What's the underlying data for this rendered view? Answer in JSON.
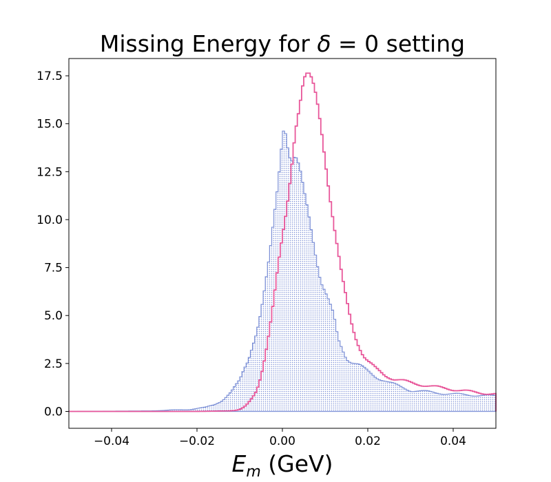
{
  "chart_data": {
    "type": "histogram",
    "title_parts": [
      "Missing Energy for ",
      "δ",
      " = 0 setting"
    ],
    "xlabel_parts": [
      "E",
      "m",
      " (GeV)"
    ],
    "xlim": [
      -0.05,
      0.05
    ],
    "ylim": [
      -0.88,
      18.4
    ],
    "xticks": [
      -0.04,
      -0.02,
      0.0,
      0.02,
      0.04
    ],
    "xtick_labels": [
      "−0.04",
      "−0.02",
      "0.00",
      "0.02",
      "0.04"
    ],
    "yticks": [
      0.0,
      2.5,
      5.0,
      7.5,
      10.0,
      12.5,
      15.0,
      17.5
    ],
    "ytick_labels": [
      "0.0",
      "2.5",
      "5.0",
      "7.5",
      "10.0",
      "12.5",
      "15.0",
      "17.5"
    ],
    "grid": false,
    "bin_edges_range": [
      -0.05,
      0.05
    ],
    "bin_width": 0.0005,
    "series": [
      {
        "style": "filled-dotted",
        "color": "#7b8fd6",
        "control_points": [
          [
            -0.05,
            0.0
          ],
          [
            -0.03,
            0.03
          ],
          [
            -0.022,
            0.1
          ],
          [
            -0.018,
            0.2
          ],
          [
            -0.016,
            0.35
          ],
          [
            -0.014,
            0.6
          ],
          [
            -0.012,
            1.0
          ],
          [
            -0.01,
            1.6
          ],
          [
            -0.009,
            2.2
          ],
          [
            -0.008,
            2.7
          ],
          [
            -0.007,
            3.5
          ],
          [
            -0.006,
            4.2
          ],
          [
            -0.005,
            5.2
          ],
          [
            -0.004,
            6.5
          ],
          [
            -0.003,
            8.0
          ],
          [
            -0.002,
            10.0
          ],
          [
            -0.001,
            12.0
          ],
          [
            0.0,
            14.5
          ],
          [
            0.0005,
            15.2
          ],
          [
            0.001,
            14.2
          ],
          [
            0.002,
            13.0
          ],
          [
            0.003,
            13.2
          ],
          [
            0.004,
            12.6
          ],
          [
            0.005,
            11.5
          ],
          [
            0.006,
            10.5
          ],
          [
            0.007,
            9.3
          ],
          [
            0.008,
            8.0
          ],
          [
            0.009,
            6.8
          ],
          [
            0.01,
            6.2
          ],
          [
            0.011,
            5.6
          ],
          [
            0.012,
            5.0
          ],
          [
            0.013,
            3.8
          ],
          [
            0.014,
            3.3
          ],
          [
            0.015,
            2.8
          ],
          [
            0.016,
            2.6
          ],
          [
            0.018,
            2.4
          ],
          [
            0.02,
            2.1
          ],
          [
            0.022,
            1.8
          ],
          [
            0.025,
            1.5
          ],
          [
            0.03,
            1.1
          ],
          [
            0.035,
            1.0
          ],
          [
            0.04,
            0.9
          ],
          [
            0.045,
            0.85
          ],
          [
            0.05,
            0.8
          ]
        ]
      },
      {
        "style": "step-line",
        "color": "#e8579a",
        "control_points": [
          [
            -0.05,
            0.0
          ],
          [
            -0.02,
            0.0
          ],
          [
            -0.012,
            0.03
          ],
          [
            -0.01,
            0.1
          ],
          [
            -0.009,
            0.2
          ],
          [
            -0.008,
            0.4
          ],
          [
            -0.007,
            0.7
          ],
          [
            -0.006,
            1.1
          ],
          [
            -0.005,
            1.9
          ],
          [
            -0.004,
            3.0
          ],
          [
            -0.003,
            4.3
          ],
          [
            -0.002,
            5.8
          ],
          [
            -0.001,
            7.5
          ],
          [
            0.0,
            9.0
          ],
          [
            0.001,
            10.5
          ],
          [
            0.002,
            12.5
          ],
          [
            0.003,
            14.8
          ],
          [
            0.004,
            16.0
          ],
          [
            0.005,
            17.3
          ],
          [
            0.006,
            17.5
          ],
          [
            0.007,
            17.1
          ],
          [
            0.008,
            16.3
          ],
          [
            0.009,
            15.0
          ],
          [
            0.01,
            13.3
          ],
          [
            0.011,
            11.5
          ],
          [
            0.012,
            9.8
          ],
          [
            0.013,
            8.3
          ],
          [
            0.014,
            6.9
          ],
          [
            0.015,
            5.8
          ],
          [
            0.016,
            4.8
          ],
          [
            0.017,
            4.0
          ],
          [
            0.018,
            3.4
          ],
          [
            0.019,
            2.9
          ],
          [
            0.02,
            2.6
          ],
          [
            0.022,
            2.2
          ],
          [
            0.024,
            1.9
          ],
          [
            0.026,
            1.7
          ],
          [
            0.03,
            1.5
          ],
          [
            0.035,
            1.3
          ],
          [
            0.04,
            1.15
          ],
          [
            0.045,
            1.0
          ],
          [
            0.05,
            0.9
          ]
        ]
      }
    ]
  }
}
